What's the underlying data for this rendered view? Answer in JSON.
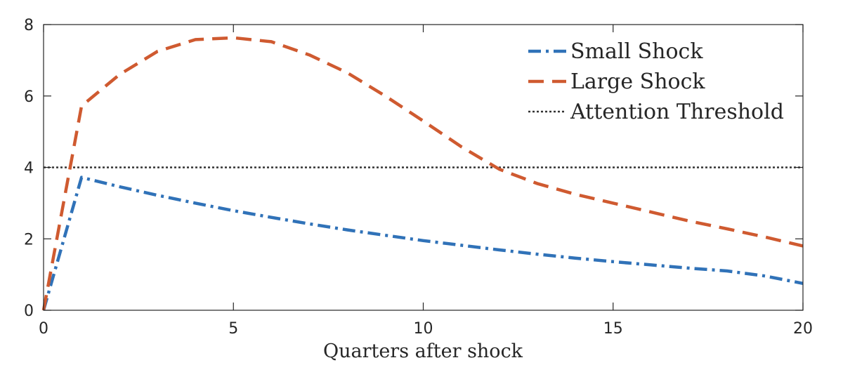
{
  "chart_data": {
    "type": "line",
    "xlabel": "Quarters after shock",
    "ylabel": "",
    "xlim": [
      0,
      20
    ],
    "ylim": [
      0,
      8
    ],
    "xticks": [
      "0",
      "5",
      "10",
      "15",
      "20"
    ],
    "yticks": [
      "0",
      "2",
      "4",
      "6",
      "8"
    ],
    "grid": false,
    "legend_position": "top-right",
    "series": [
      {
        "name": "Small Shock",
        "color": "#3072b8",
        "style": "dash-dot",
        "x": [
          0,
          1,
          2,
          3,
          4,
          5,
          6,
          7,
          8,
          9,
          10,
          11,
          12,
          13,
          14,
          15,
          16,
          17,
          18,
          19,
          20
        ],
        "values": [
          0,
          3.72,
          3.46,
          3.22,
          3.0,
          2.79,
          2.6,
          2.42,
          2.25,
          2.1,
          1.95,
          1.82,
          1.69,
          1.57,
          1.46,
          1.36,
          1.27,
          1.18,
          1.1,
          0.96,
          0.75
        ]
      },
      {
        "name": "Large Shock",
        "color": "#cf5a30",
        "style": "dashed",
        "x": [
          0,
          1,
          2,
          3,
          4,
          5,
          6,
          7,
          8,
          9,
          10,
          11,
          12,
          13,
          14,
          15,
          16,
          17,
          18,
          19,
          20
        ],
        "values": [
          0,
          5.72,
          6.6,
          7.25,
          7.58,
          7.63,
          7.52,
          7.15,
          6.65,
          6.0,
          5.3,
          4.58,
          3.95,
          3.55,
          3.25,
          3.0,
          2.75,
          2.5,
          2.28,
          2.05,
          1.8
        ]
      },
      {
        "name": "Attention Threshold",
        "color": "#333333",
        "style": "dotted",
        "x": [
          0,
          20
        ],
        "values": [
          4,
          4
        ]
      }
    ]
  }
}
